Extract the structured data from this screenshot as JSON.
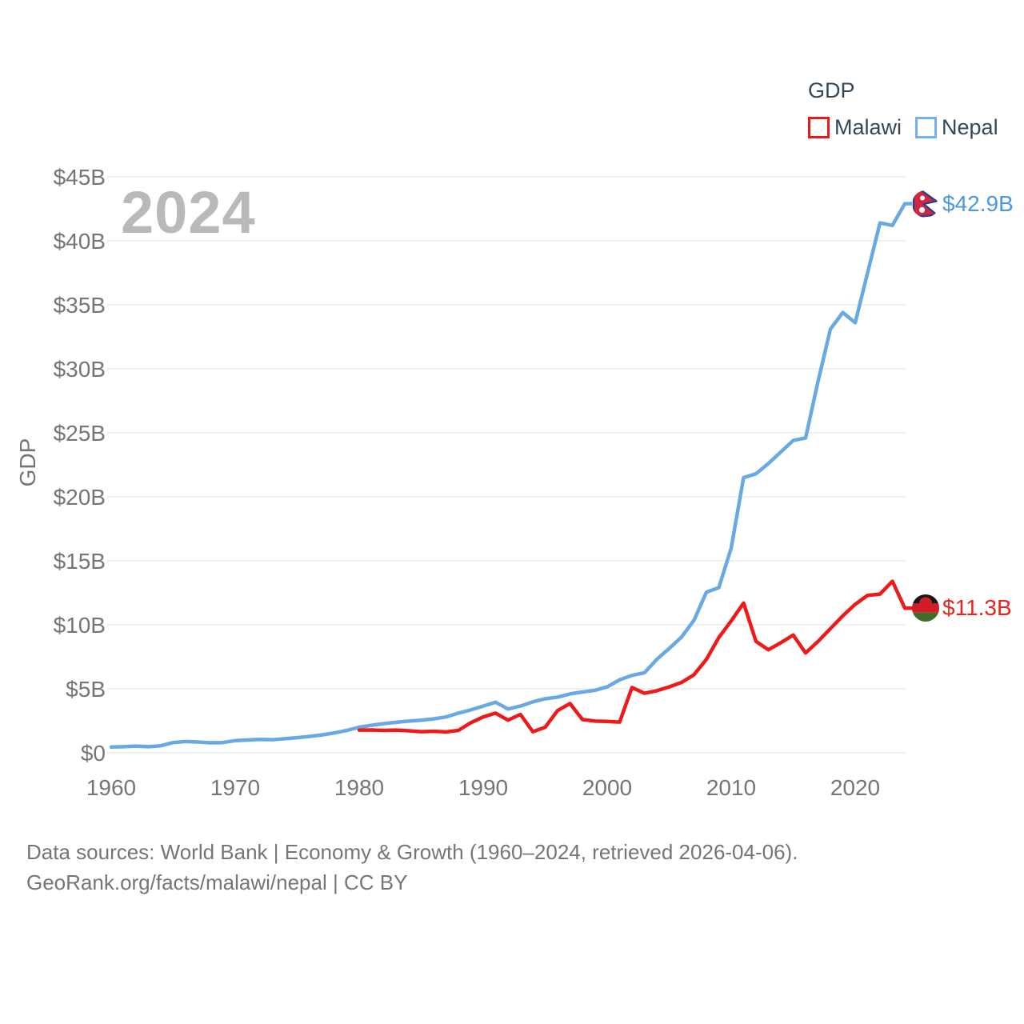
{
  "legend": {
    "title": "GDP",
    "items": [
      {
        "label": "Malawi",
        "color": "#ee1a1a"
      },
      {
        "label": "Nepal",
        "color": "#74b0ea"
      }
    ]
  },
  "watermark": "2024",
  "axes": {
    "y_title": "GDP"
  },
  "end_labels": {
    "nepal": {
      "text": "$42.9B",
      "color": "#4a97e3"
    },
    "malawi": {
      "text": "$11.3B",
      "color": "#e8251c"
    }
  },
  "footer": {
    "line1": "Data sources: World Bank | Economy & Growth (1960–2024, retrieved 2026-04-06).",
    "line2": "GeoRank.org/facts/malawi/nepal | CC BY"
  },
  "chart_data": {
    "type": "line",
    "title": "GDP",
    "xlabel": "",
    "ylabel": "GDP",
    "x_range": [
      1960,
      2024
    ],
    "ylim": [
      0,
      45
    ],
    "grid": "horizontal",
    "legend_position": "top-right",
    "y_ticks": [
      {
        "value": 0,
        "label": "$0"
      },
      {
        "value": 5,
        "label": "$5B"
      },
      {
        "value": 10,
        "label": "$10B"
      },
      {
        "value": 15,
        "label": "$15B"
      },
      {
        "value": 20,
        "label": "$20B"
      },
      {
        "value": 25,
        "label": "$25B"
      },
      {
        "value": 30,
        "label": "$30B"
      },
      {
        "value": 35,
        "label": "$35B"
      },
      {
        "value": 40,
        "label": "$40B"
      },
      {
        "value": 45,
        "label": "$45B"
      }
    ],
    "x_ticks": [
      {
        "value": 1960,
        "label": "1960"
      },
      {
        "value": 1970,
        "label": "1970"
      },
      {
        "value": 1980,
        "label": "1980"
      },
      {
        "value": 1990,
        "label": "1990"
      },
      {
        "value": 2000,
        "label": "2000"
      },
      {
        "value": 2010,
        "label": "2010"
      },
      {
        "value": 2020,
        "label": "2020"
      }
    ],
    "series": [
      {
        "name": "Nepal",
        "color": "#68a9e3",
        "start_year": 1960,
        "unit": "billion USD",
        "values": [
          0.45,
          0.48,
          0.52,
          0.48,
          0.55,
          0.8,
          0.88,
          0.84,
          0.78,
          0.8,
          0.95,
          1.0,
          1.05,
          1.02,
          1.1,
          1.18,
          1.28,
          1.4,
          1.55,
          1.75,
          2.0,
          2.15,
          2.28,
          2.38,
          2.48,
          2.55,
          2.65,
          2.8,
          3.1,
          3.35,
          3.65,
          3.95,
          3.42,
          3.65,
          3.98,
          4.22,
          4.35,
          4.6,
          4.75,
          4.88,
          5.15,
          5.7,
          6.05,
          6.25,
          7.3,
          8.15,
          9.05,
          10.35,
          12.55,
          12.9,
          16.0,
          21.5,
          21.8,
          22.6,
          23.5,
          24.4,
          24.6,
          29.0,
          33.1,
          34.4,
          33.6,
          37.5,
          41.4,
          41.2,
          42.9
        ]
      },
      {
        "name": "Malawi",
        "color": "#ee1a1a",
        "start_year": 1980,
        "unit": "billion USD",
        "values": [
          1.77,
          1.78,
          1.75,
          1.77,
          1.72,
          1.65,
          1.68,
          1.63,
          1.75,
          2.35,
          2.8,
          3.1,
          2.55,
          3.0,
          1.65,
          2.0,
          3.3,
          3.85,
          2.6,
          2.48,
          2.45,
          2.4,
          5.1,
          4.65,
          4.85,
          5.15,
          5.5,
          6.1,
          7.3,
          9.0,
          10.3,
          11.7,
          8.7,
          8.05,
          8.6,
          9.2,
          7.8,
          8.7,
          9.7,
          10.7,
          11.6,
          12.3,
          12.4,
          13.4,
          11.3
        ]
      }
    ],
    "end_markers": [
      {
        "series": "nepal",
        "year": 2024,
        "value": 42.9,
        "label": "$42.9B",
        "flag": "nepal-flag-icon"
      },
      {
        "series": "malawi",
        "year": 2024,
        "value": 11.3,
        "label": "$11.3B",
        "flag": "malawi-flag-icon"
      }
    ]
  }
}
